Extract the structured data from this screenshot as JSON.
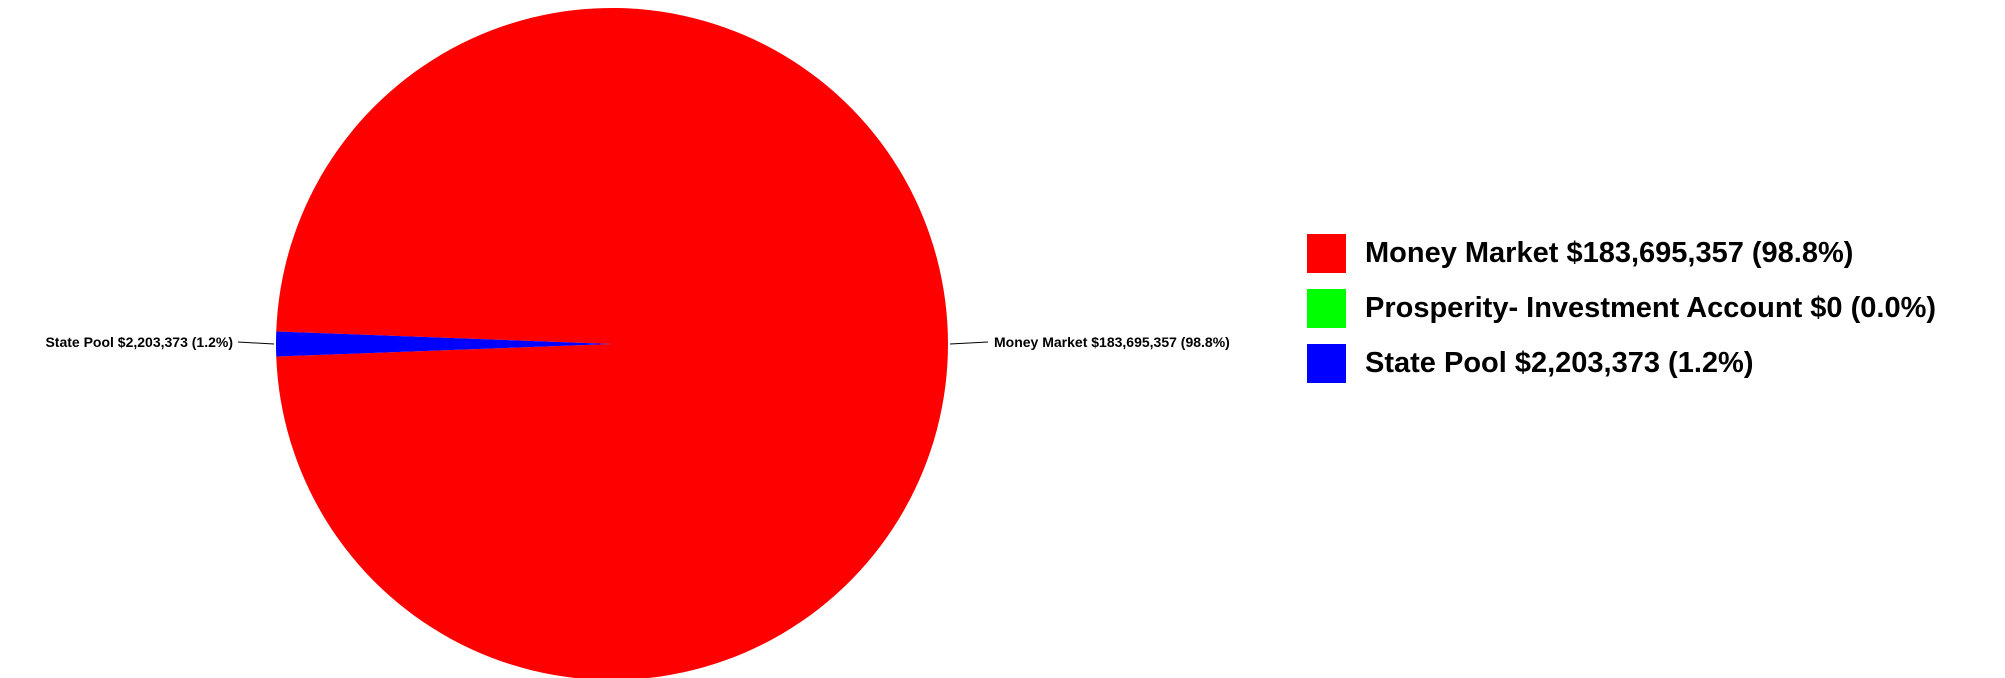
{
  "chart_data": {
    "type": "pie",
    "slices": [
      {
        "name": "Money Market",
        "value": 183695357,
        "percent": 98.8,
        "color": "#ff0000",
        "label": "Money Market $183,695,357 (98.8%)"
      },
      {
        "name": "Prosperity- Investment Account",
        "value": 0,
        "percent": 0.0,
        "color": "#00ff00",
        "label": "Prosperity- Investment Account $0 (0.0%)"
      },
      {
        "name": "State Pool",
        "value": 2203373,
        "percent": 1.2,
        "color": "#0000ff",
        "label": "State Pool $2,203,373 (1.2%)"
      }
    ],
    "legend_position": "right"
  }
}
